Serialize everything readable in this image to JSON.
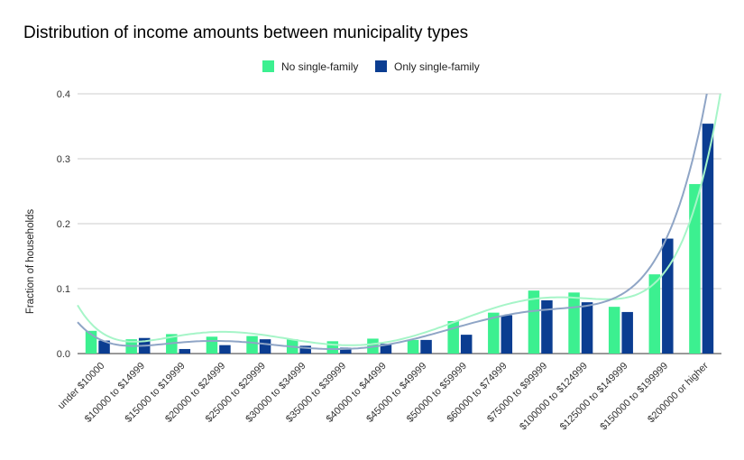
{
  "chart_data": {
    "type": "bar",
    "title": "Distribution of income amounts between municipality types",
    "xlabel": "",
    "ylabel": "Fraction of households",
    "ylim": [
      0,
      0.4
    ],
    "yticks": [
      "0.0",
      "0.1",
      "0.2",
      "0.3",
      "0.4"
    ],
    "grid": true,
    "legend_position": "top-center",
    "trendlines": true,
    "categories": [
      "under $10000",
      "$10000 to $14999",
      "$15000 to $19999",
      "$20000 to $24999",
      "$25000 to $29999",
      "$30000 to $34999",
      "$35000 to $39999",
      "$40000 to $44999",
      "$45000 to $49999",
      "$50000 to $59999",
      "$60000 to $74999",
      "$75000 to $99999",
      "$100000 to $124999",
      "$125000 to $149999",
      "$150000 to $199999",
      "$200000 or higher"
    ],
    "series": [
      {
        "name": "No single-family",
        "color": "#3cf090",
        "trend_color": "#a6f5c8",
        "values": [
          0.035,
          0.022,
          0.03,
          0.026,
          0.027,
          0.022,
          0.019,
          0.023,
          0.021,
          0.05,
          0.063,
          0.097,
          0.094,
          0.072,
          0.122,
          0.261
        ]
      },
      {
        "name": "Only single-family",
        "color": "#0b3d91",
        "trend_color": "#8fa5c6",
        "values": [
          0.02,
          0.024,
          0.007,
          0.013,
          0.022,
          0.012,
          0.009,
          0.015,
          0.021,
          0.029,
          0.059,
          0.082,
          0.079,
          0.064,
          0.177,
          0.354
        ]
      }
    ]
  }
}
